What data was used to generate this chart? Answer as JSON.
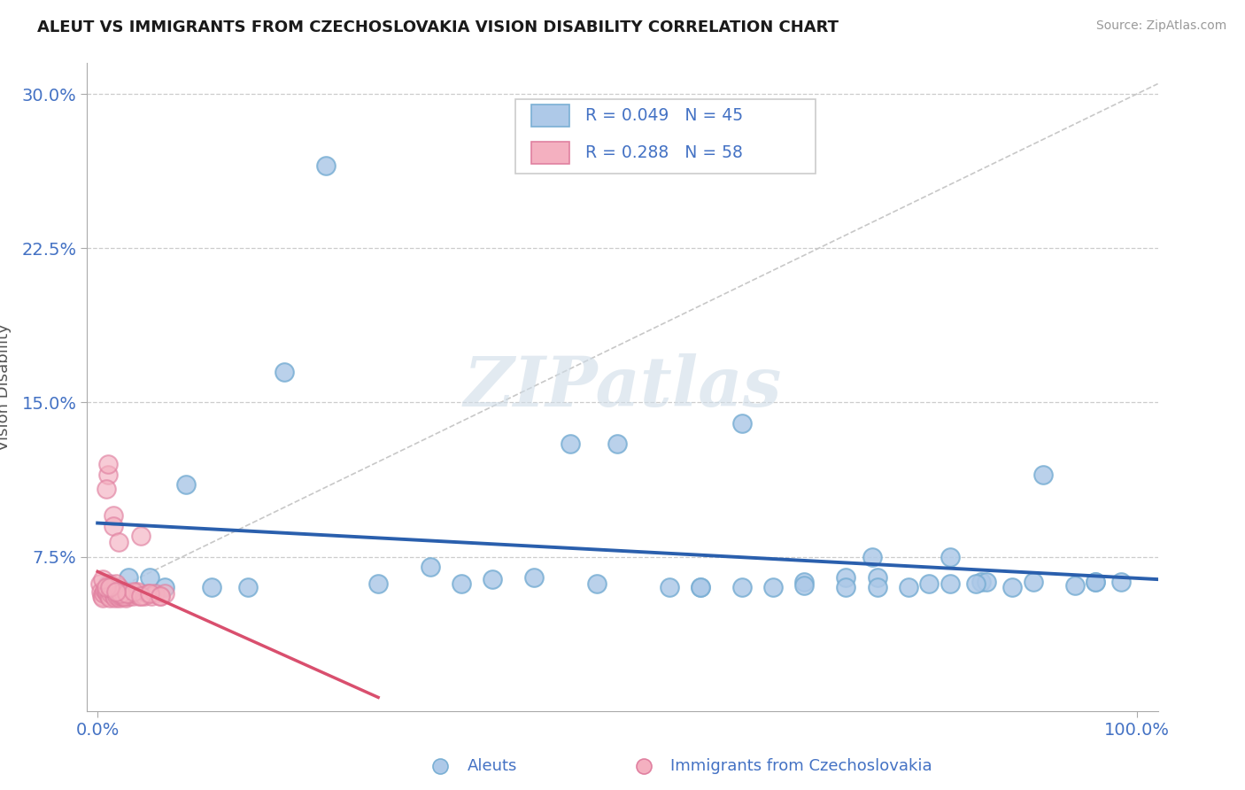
{
  "title": "ALEUT VS IMMIGRANTS FROM CZECHOSLOVAKIA VISION DISABILITY CORRELATION CHART",
  "source": "Source: ZipAtlas.com",
  "ylabel": "Vision Disability",
  "xlim": [
    -0.01,
    1.02
  ],
  "ylim": [
    0.0,
    0.315
  ],
  "yticks": [
    0.075,
    0.15,
    0.225,
    0.3
  ],
  "ytick_labels": [
    "7.5%",
    "15.0%",
    "22.5%",
    "30.0%"
  ],
  "xticks": [
    0.0,
    1.0
  ],
  "xtick_labels": [
    "0.0%",
    "100.0%"
  ],
  "legend1_r": "0.049",
  "legend1_n": "45",
  "legend2_r": "0.288",
  "legend2_n": "58",
  "aleuts_color": "#aec9e8",
  "aleuts_edge": "#7aafd4",
  "czecho_color": "#f4b0c0",
  "czecho_edge": "#e080a0",
  "ref_line_color": "#c8c8c8",
  "blue_reg_color": "#2a5fad",
  "pink_reg_color": "#d94f6e",
  "watermark_color": "#d0dde8",
  "aleuts_x": [
    0.02,
    0.03,
    0.05,
    0.085,
    0.145,
    0.18,
    0.22,
    0.27,
    0.32,
    0.38,
    0.42,
    0.455,
    0.5,
    0.55,
    0.58,
    0.62,
    0.65,
    0.68,
    0.72,
    0.75,
    0.78,
    0.82,
    0.85,
    0.88,
    0.91,
    0.94,
    0.96,
    0.985,
    0.01,
    0.065,
    0.11,
    0.35,
    0.48,
    0.58,
    0.68,
    0.745,
    0.82,
    0.855,
    0.9,
    0.96,
    0.72,
    0.75,
    0.8,
    0.845,
    0.62
  ],
  "aleuts_y": [
    0.06,
    0.065,
    0.065,
    0.11,
    0.06,
    0.165,
    0.265,
    0.062,
    0.07,
    0.064,
    0.065,
    0.13,
    0.13,
    0.06,
    0.06,
    0.14,
    0.06,
    0.063,
    0.065,
    0.065,
    0.06,
    0.062,
    0.063,
    0.06,
    0.115,
    0.061,
    0.063,
    0.063,
    0.062,
    0.06,
    0.06,
    0.062,
    0.062,
    0.06,
    0.061,
    0.075,
    0.075,
    0.063,
    0.063,
    0.063,
    0.06,
    0.06,
    0.062,
    0.062,
    0.06
  ],
  "czecho_x": [
    0.002,
    0.003,
    0.004,
    0.005,
    0.006,
    0.007,
    0.008,
    0.009,
    0.01,
    0.011,
    0.012,
    0.013,
    0.014,
    0.015,
    0.016,
    0.017,
    0.018,
    0.019,
    0.02,
    0.021,
    0.022,
    0.023,
    0.024,
    0.025,
    0.026,
    0.027,
    0.028,
    0.03,
    0.032,
    0.034,
    0.036,
    0.038,
    0.04,
    0.042,
    0.045,
    0.048,
    0.052,
    0.055,
    0.06,
    0.065,
    0.01,
    0.015,
    0.02,
    0.025,
    0.03,
    0.008,
    0.012,
    0.018,
    0.022,
    0.028,
    0.035,
    0.042,
    0.05,
    0.06,
    0.005,
    0.008,
    0.012,
    0.018
  ],
  "czecho_y": [
    0.062,
    0.058,
    0.056,
    0.055,
    0.057,
    0.059,
    0.058,
    0.057,
    0.115,
    0.056,
    0.055,
    0.057,
    0.058,
    0.095,
    0.056,
    0.055,
    0.057,
    0.056,
    0.06,
    0.055,
    0.056,
    0.057,
    0.056,
    0.058,
    0.056,
    0.055,
    0.057,
    0.056,
    0.057,
    0.056,
    0.057,
    0.058,
    0.056,
    0.085,
    0.056,
    0.057,
    0.056,
    0.057,
    0.056,
    0.057,
    0.12,
    0.09,
    0.082,
    0.056,
    0.057,
    0.108,
    0.062,
    0.062,
    0.057,
    0.057,
    0.058,
    0.056,
    0.057,
    0.056,
    0.064,
    0.06,
    0.06,
    0.058
  ]
}
